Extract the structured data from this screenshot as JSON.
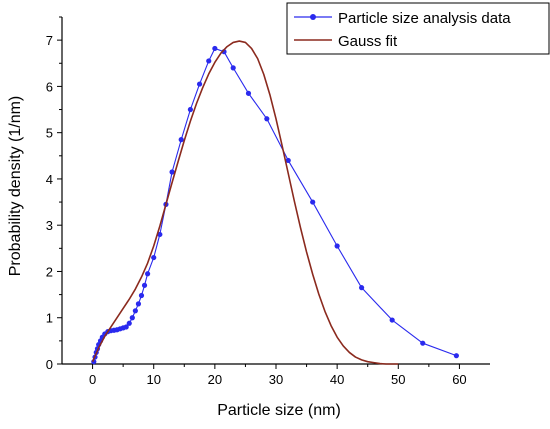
{
  "chart_data": {
    "type": "line",
    "xlabel": "Particle size (nm)",
    "ylabel": "Probability density (1/nm)",
    "xlim": [
      -5,
      65
    ],
    "ylim": [
      0,
      7.5
    ],
    "xticks": [
      0,
      10,
      20,
      30,
      40,
      50,
      60
    ],
    "yticks": [
      0,
      1,
      2,
      3,
      4,
      5,
      6,
      7
    ],
    "grid": false,
    "legend_position": "top-right",
    "series": [
      {
        "name": "Particle size analysis data",
        "style": "line-with-markers",
        "color": "#2a2aee",
        "x": [
          0.2,
          0.4,
          0.6,
          0.8,
          1.0,
          1.3,
          1.6,
          2.0,
          2.5,
          3.0,
          3.5,
          4.0,
          4.5,
          5.0,
          5.5,
          6.0,
          6.5,
          7.0,
          7.5,
          8.0,
          8.5,
          9.0,
          10.0,
          11.0,
          12.0,
          13.0,
          14.5,
          16.0,
          17.5,
          19.0,
          20.0,
          21.5,
          23.0,
          25.5,
          28.5,
          32.0,
          36.0,
          40.0,
          44.0,
          49.0,
          54.0,
          59.5
        ],
        "y": [
          0.05,
          0.15,
          0.25,
          0.33,
          0.42,
          0.5,
          0.58,
          0.65,
          0.7,
          0.72,
          0.73,
          0.74,
          0.76,
          0.78,
          0.8,
          0.88,
          1.0,
          1.15,
          1.3,
          1.48,
          1.7,
          1.95,
          2.3,
          2.8,
          3.45,
          4.15,
          4.85,
          5.5,
          6.05,
          6.55,
          6.82,
          6.75,
          6.4,
          5.85,
          5.3,
          4.4,
          3.5,
          2.55,
          1.65,
          0.95,
          0.45,
          0.18
        ]
      },
      {
        "name": "Gauss fit",
        "style": "line",
        "color": "#8b2a1e",
        "x": [
          0,
          1,
          2,
          3,
          4,
          5,
          6,
          7,
          8,
          9,
          10,
          11,
          12,
          13,
          14,
          15,
          16,
          17,
          18,
          19,
          20,
          21,
          22,
          23,
          24,
          25,
          26,
          27,
          28,
          29,
          30,
          31,
          32,
          33,
          34,
          35,
          36,
          37,
          38,
          39,
          40,
          41,
          42,
          43,
          44,
          45,
          46,
          47,
          48,
          49,
          50
        ],
        "y": [
          0.05,
          0.35,
          0.6,
          0.8,
          1.0,
          1.2,
          1.4,
          1.62,
          1.88,
          2.18,
          2.55,
          2.98,
          3.45,
          3.92,
          4.38,
          4.83,
          5.25,
          5.63,
          5.97,
          6.27,
          6.52,
          6.72,
          6.86,
          6.95,
          6.98,
          6.95,
          6.82,
          6.6,
          6.26,
          5.82,
          5.3,
          4.72,
          4.12,
          3.52,
          2.95,
          2.42,
          1.94,
          1.51,
          1.14,
          0.83,
          0.58,
          0.39,
          0.25,
          0.15,
          0.09,
          0.05,
          0.03,
          0.01,
          0.0,
          0.0,
          0.0
        ]
      }
    ]
  }
}
